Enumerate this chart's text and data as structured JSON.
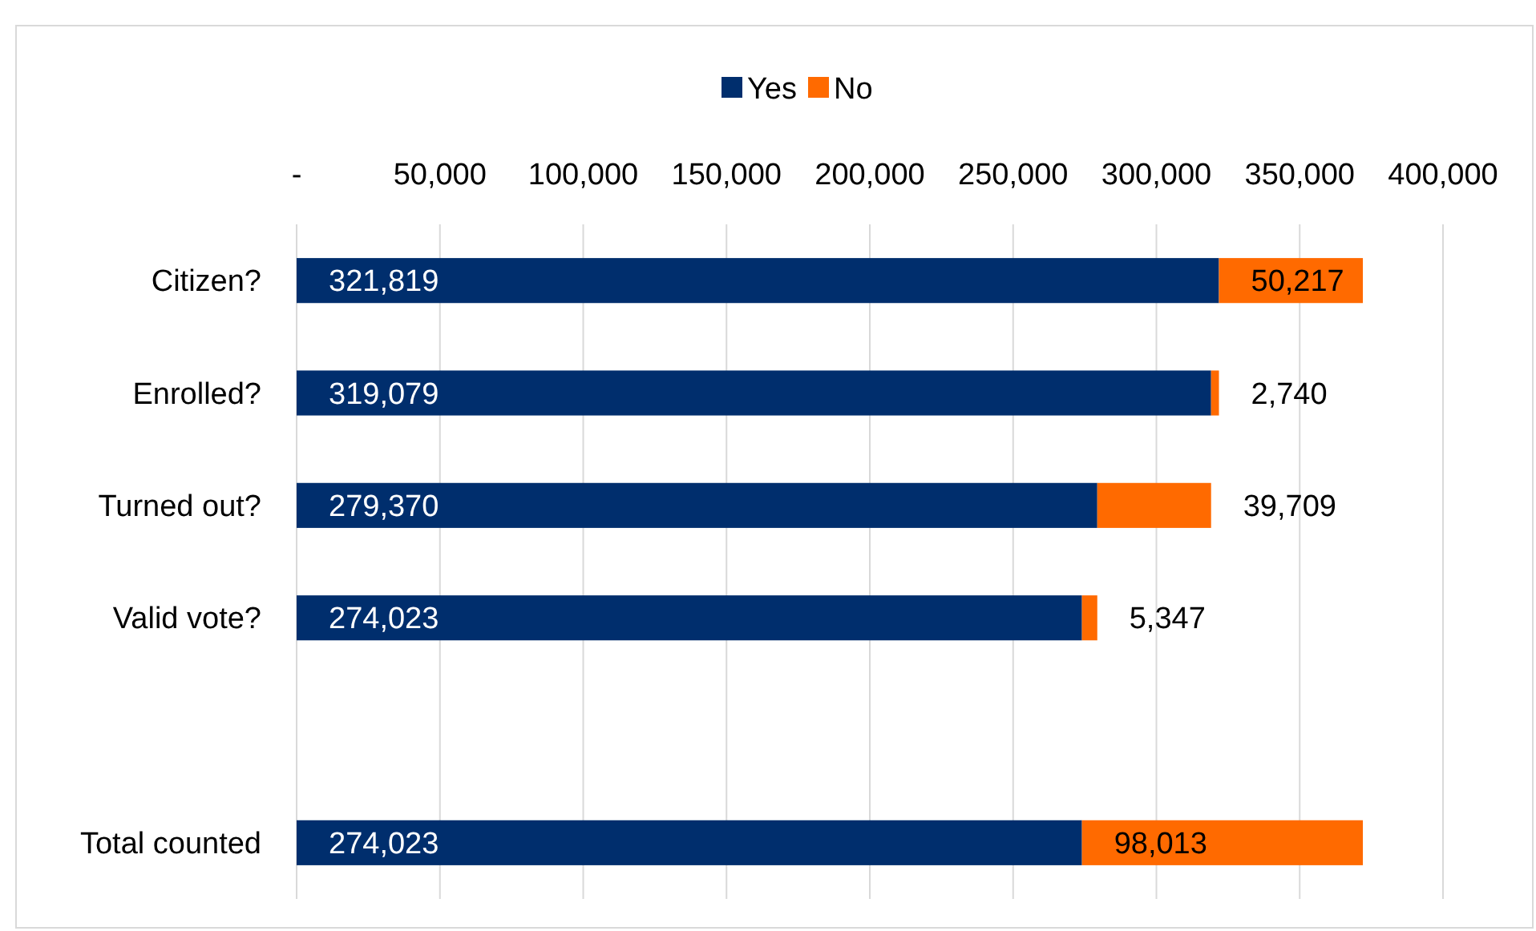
{
  "chart_data": {
    "type": "bar",
    "orientation": "horizontal",
    "stacked": true,
    "categories": [
      "Citizen?",
      "Enrolled?",
      "Turned out?",
      "Valid vote?",
      null,
      "Total counted"
    ],
    "series": [
      {
        "name": "Yes",
        "color": "#002e6d",
        "values": [
          321819,
          319079,
          279370,
          274023,
          null,
          274023
        ],
        "value_labels": [
          "321,819",
          "319,079",
          "279,370",
          "274,023",
          null,
          "274,023"
        ]
      },
      {
        "name": "No",
        "color": "#ff6a00",
        "values": [
          50217,
          2740,
          39709,
          5347,
          null,
          98013
        ],
        "value_labels": [
          "50,217",
          "2,740",
          "39,709",
          "5,347",
          null,
          "98,013"
        ]
      }
    ],
    "xlim": [
      0,
      400000
    ],
    "xticks": [
      {
        "value": 0,
        "label": "-"
      },
      {
        "value": 50000,
        "label": "50,000"
      },
      {
        "value": 100000,
        "label": "100,000"
      },
      {
        "value": 150000,
        "label": "150,000"
      },
      {
        "value": 200000,
        "label": "200,000"
      },
      {
        "value": 250000,
        "label": "250,000"
      },
      {
        "value": 300000,
        "label": "300,000"
      },
      {
        "value": 350000,
        "label": "350,000"
      },
      {
        "value": 400000,
        "label": "400,000"
      }
    ],
    "grid": "x",
    "legend": "top"
  }
}
